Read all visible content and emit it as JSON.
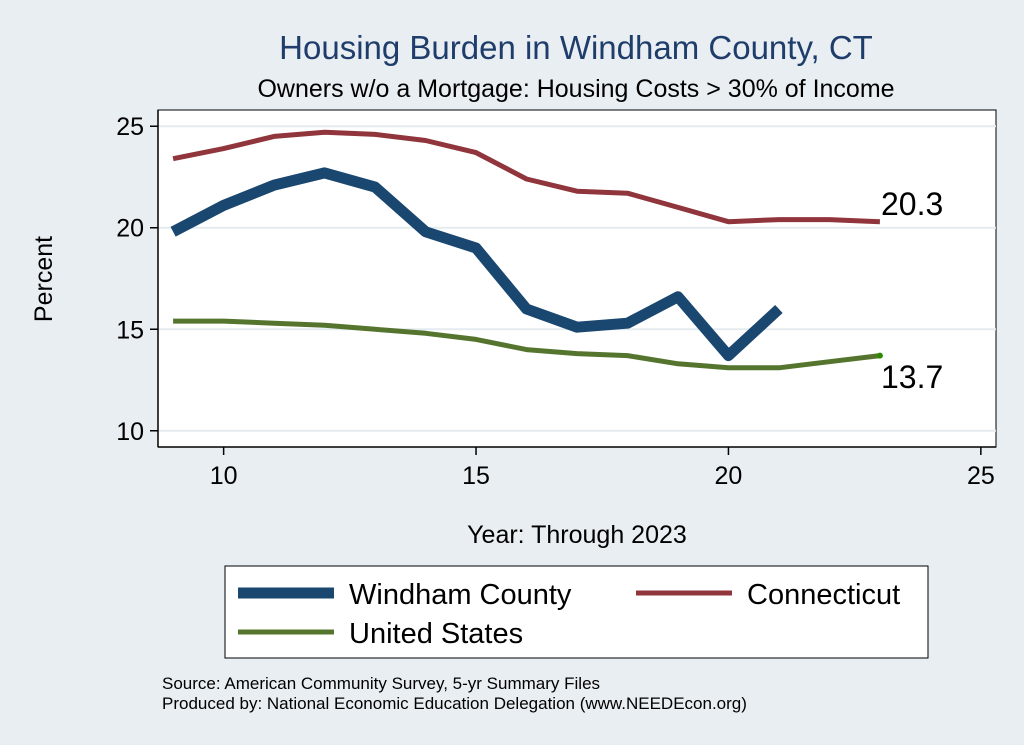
{
  "chart_data": {
    "type": "line",
    "title": "Housing Burden in Windham County, CT",
    "subtitle": "Owners w/o a Mortgage: Housing Costs > 30% of Income",
    "xlabel": "Year: Through 2023",
    "ylabel": "Percent",
    "xlim": [
      8.7,
      25.3
    ],
    "ylim": [
      9.2,
      25.8
    ],
    "xticks": [
      "10",
      "15",
      "20",
      "25"
    ],
    "yticks": [
      "10",
      "15",
      "20",
      "25"
    ],
    "grid": true,
    "legend_position": "bottom",
    "series": [
      {
        "name": "Windham County",
        "color": "#1a476f",
        "x": [
          9,
          10,
          11,
          12,
          13,
          14,
          15,
          16,
          17,
          18,
          19,
          20,
          21
        ],
        "y": [
          19.8,
          21.1,
          22.1,
          22.7,
          22.0,
          19.8,
          19.0,
          16.0,
          15.1,
          15.3,
          16.6,
          13.7,
          16.0
        ]
      },
      {
        "name": "Connecticut",
        "color": "#90353b",
        "x": [
          9,
          10,
          11,
          12,
          13,
          14,
          15,
          16,
          17,
          18,
          19,
          20,
          21,
          22,
          23
        ],
        "y": [
          23.4,
          23.9,
          24.5,
          24.7,
          24.6,
          24.3,
          23.7,
          22.4,
          21.8,
          21.7,
          21.0,
          20.3,
          20.4,
          20.4,
          20.3
        ]
      },
      {
        "name": "United States",
        "color": "#55752f",
        "x": [
          9,
          10,
          11,
          12,
          13,
          14,
          15,
          16,
          17,
          18,
          19,
          20,
          21,
          22,
          23
        ],
        "y": [
          15.4,
          15.4,
          15.3,
          15.2,
          15.0,
          14.8,
          14.5,
          14.0,
          13.8,
          13.7,
          13.3,
          13.1,
          13.1,
          13.4,
          13.7
        ]
      }
    ],
    "end_labels": [
      {
        "text": "20.3",
        "series": "Connecticut"
      },
      {
        "text": "13.7",
        "series": "United States"
      }
    ],
    "source_lines": [
      "Source: American Community Survey, 5-yr Summary Files",
      "Produced by: National Economic Education Delegation (www.NEEDEcon.org)"
    ]
  }
}
